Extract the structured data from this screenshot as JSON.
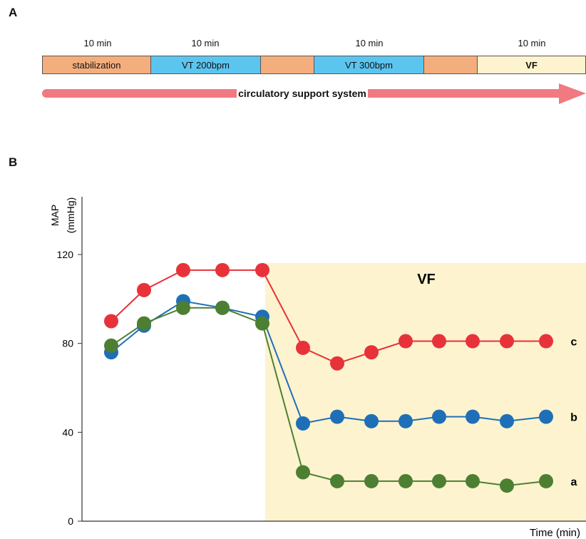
{
  "panel_a": {
    "letter": "A",
    "durations": [
      "10 min",
      "10 min",
      "10 min",
      "10 min"
    ],
    "segments": [
      {
        "label": "stabilization",
        "color": "#f4ae7e"
      },
      {
        "label": "VT 200bpm",
        "color": "#5bc5f0"
      },
      {
        "label": "",
        "color": "#f4ae7e"
      },
      {
        "label": "VT 300bpm",
        "color": "#5bc5f0"
      },
      {
        "label": "",
        "color": "#f4ae7e"
      },
      {
        "label": "VF",
        "color": "#fdf3cf"
      }
    ],
    "arrow_label": "circulatory support system",
    "arrow_color": "#f07a80"
  },
  "panel_b": {
    "letter": "B"
  },
  "chart_data": {
    "type": "line",
    "title": "",
    "ylabel": "MAP",
    "ylabel_unit": "(mmHg)",
    "xlabel": "Time (min)",
    "ylim": [
      0,
      140
    ],
    "yticks": [
      0,
      40,
      80,
      120
    ],
    "shaded_region": {
      "label": "VF",
      "color": "#fdf3cf",
      "from_point_index": 4.1
    },
    "x": [
      1,
      2,
      3,
      4,
      5,
      6,
      7,
      8,
      9,
      10,
      11,
      12,
      13,
      14
    ],
    "series": [
      {
        "name": "c",
        "color": "#e8323a",
        "values": [
          90,
          104,
          113,
          113,
          113,
          78,
          71,
          76,
          81,
          81,
          81,
          81,
          81,
          null
        ]
      },
      {
        "name": "b",
        "color": "#1f6fb8",
        "values": [
          76,
          88,
          99,
          96,
          92,
          44,
          47,
          45,
          45,
          47,
          47,
          45,
          47,
          null
        ]
      },
      {
        "name": "a",
        "color": "#4d7f32",
        "values": [
          79,
          89,
          96,
          96,
          89,
          22,
          18,
          18,
          18,
          18,
          18,
          16,
          18,
          null
        ]
      }
    ]
  }
}
